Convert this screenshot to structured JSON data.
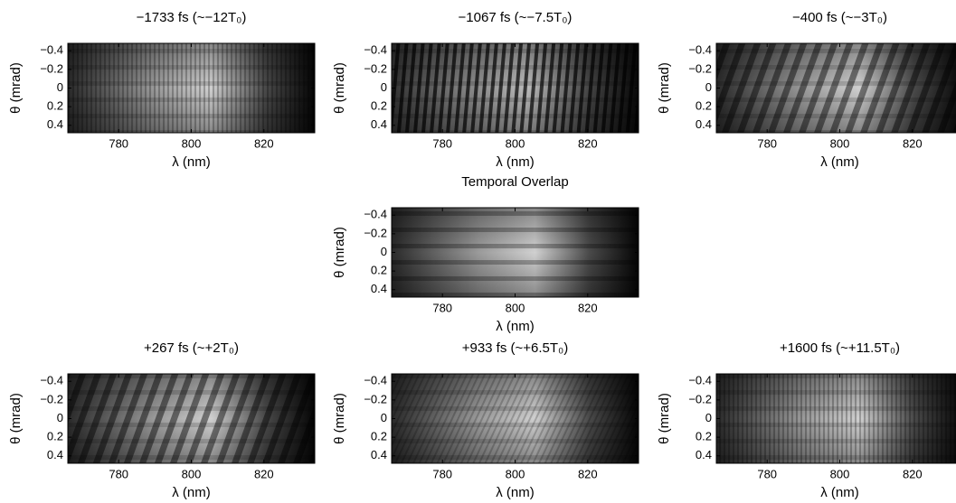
{
  "chart_data": [
    {
      "type": "image",
      "title": "−1733 fs (~−12T₀)",
      "xlabel": "λ (nm)",
      "ylabel": "θ (mrad)",
      "xlim": [
        766,
        834
      ],
      "xticks": [
        780,
        800,
        820
      ],
      "ylim": [
        -0.48,
        0.48
      ],
      "y_inverted": true,
      "yticks": [
        {
          "value": -0.4,
          "label": "−0.4"
        },
        {
          "value": -0.2,
          "label": "−0.2"
        },
        0,
        0.2,
        0.4
      ]
    },
    {
      "type": "image",
      "title": "−1067 fs (~−7.5T₀)",
      "xlabel": "λ (nm)",
      "ylabel": "θ (mrad)",
      "xlim": [
        766,
        834
      ],
      "xticks": [
        780,
        800,
        820
      ],
      "ylim": [
        -0.48,
        0.48
      ],
      "y_inverted": true,
      "yticks": [
        {
          "value": -0.4,
          "label": "−0.4"
        },
        {
          "value": -0.2,
          "label": "−0.2"
        },
        0,
        0.2,
        0.4
      ]
    },
    {
      "type": "image",
      "title": "−400 fs (~−3T₀)",
      "xlabel": "λ (nm)",
      "ylabel": "θ (mrad)",
      "xlim": [
        766,
        834
      ],
      "xticks": [
        780,
        800,
        820
      ],
      "ylim": [
        -0.48,
        0.48
      ],
      "y_inverted": true,
      "yticks": [
        {
          "value": -0.4,
          "label": "−0.4"
        },
        {
          "value": -0.2,
          "label": "−0.2"
        },
        0,
        0.2,
        0.4
      ]
    },
    {
      "type": "image",
      "title": "Temporal Overlap",
      "xlabel": "λ (nm)",
      "ylabel": "θ (mrad)",
      "xlim": [
        766,
        834
      ],
      "xticks": [
        780,
        800,
        820
      ],
      "ylim": [
        -0.48,
        0.48
      ],
      "y_inverted": true,
      "yticks": [
        {
          "value": -0.4,
          "label": "−0.4"
        },
        {
          "value": -0.2,
          "label": "−0.2"
        },
        0,
        0.2,
        0.4
      ]
    },
    {
      "type": "image",
      "title": "+267 fs (~+2T₀)",
      "xlabel": "λ (nm)",
      "ylabel": "θ (mrad)",
      "xlim": [
        766,
        834
      ],
      "xticks": [
        780,
        800,
        820
      ],
      "ylim": [
        -0.48,
        0.48
      ],
      "y_inverted": true,
      "yticks": [
        {
          "value": -0.4,
          "label": "−0.4"
        },
        {
          "value": -0.2,
          "label": "−0.2"
        },
        0,
        0.2,
        0.4
      ]
    },
    {
      "type": "image",
      "title": "+933 fs (~+6.5T₀)",
      "xlabel": "λ (nm)",
      "ylabel": "θ (mrad)",
      "xlim": [
        766,
        834
      ],
      "xticks": [
        780,
        800,
        820
      ],
      "ylim": [
        -0.48,
        0.48
      ],
      "y_inverted": true,
      "yticks": [
        {
          "value": -0.4,
          "label": "−0.4"
        },
        {
          "value": -0.2,
          "label": "−0.2"
        },
        0,
        0.2,
        0.4
      ]
    },
    {
      "type": "image",
      "title": "+1600 fs (~+11.5T₀)",
      "xlabel": "λ (nm)",
      "ylabel": "θ (mrad)",
      "xlim": [
        766,
        834
      ],
      "xticks": [
        780,
        800,
        820
      ],
      "ylim": [
        -0.48,
        0.48
      ],
      "y_inverted": true,
      "yticks": [
        {
          "value": -0.4,
          "label": "−0.4"
        },
        {
          "value": -0.2,
          "label": "−0.2"
        },
        0,
        0.2,
        0.4
      ]
    }
  ]
}
